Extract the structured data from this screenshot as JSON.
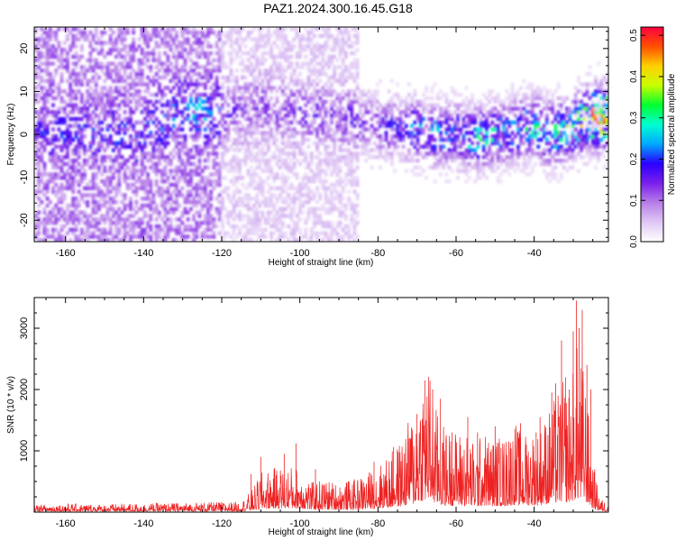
{
  "title": "PAZ1.2024.300.16.45.G18",
  "chart_data": [
    {
      "type": "heatmap",
      "title": "",
      "xlabel": "Height of straight line (km)",
      "ylabel": "Frequency (Hz)",
      "xlim": [
        -168,
        -21
      ],
      "ylim": [
        -25,
        25
      ],
      "xticks": [
        -160,
        -140,
        -120,
        -100,
        -80,
        -60,
        -40
      ],
      "yticks": [
        -20,
        -10,
        0,
        10,
        20
      ],
      "colorbar": {
        "label": "Normalized spectral amplitude",
        "range": [
          0,
          0.52
        ],
        "ticks": [
          0.0,
          0.1,
          0.2,
          0.3,
          0.4,
          0.5
        ],
        "colors": [
          "#ffffff",
          "#e0c8f4",
          "#b77ee8",
          "#7a1fea",
          "#2a00ff",
          "#00a8ff",
          "#00ffd0",
          "#00ff30",
          "#c8ff00",
          "#ffd000",
          "#ff5000",
          "#ff0040"
        ]
      },
      "ridge": [
        {
          "x": -160,
          "f": 0,
          "a": 0.06
        },
        {
          "x": -140,
          "f": 0,
          "a": 0.07
        },
        {
          "x": -130,
          "f": 6,
          "a": 0.1
        },
        {
          "x": -125,
          "f": 5,
          "a": 0.13
        },
        {
          "x": -120,
          "f": 5,
          "a": 0.09
        },
        {
          "x": -110,
          "f": 7,
          "a": 0.07
        },
        {
          "x": -100,
          "f": 5,
          "a": 0.08
        },
        {
          "x": -90,
          "f": 4,
          "a": 0.08
        },
        {
          "x": -80,
          "f": 2,
          "a": 0.12
        },
        {
          "x": -75,
          "f": 2,
          "a": 0.15
        },
        {
          "x": -70,
          "f": 1,
          "a": 0.18
        },
        {
          "x": -65,
          "f": 0,
          "a": 0.2
        },
        {
          "x": -60,
          "f": 0,
          "a": 0.2
        },
        {
          "x": -55,
          "f": -1,
          "a": 0.22
        },
        {
          "x": -50,
          "f": 0,
          "a": 0.22
        },
        {
          "x": -45,
          "f": 1,
          "a": 0.2
        },
        {
          "x": -40,
          "f": 2,
          "a": 0.24
        },
        {
          "x": -35,
          "f": 0,
          "a": 0.24
        },
        {
          "x": -30,
          "f": 2,
          "a": 0.26
        },
        {
          "x": -25,
          "f": 4,
          "a": 0.42
        }
      ]
    },
    {
      "type": "line",
      "title": "",
      "xlabel": "Height of straight line (km)",
      "ylabel": "SNR (10 * v/v)",
      "xlim": [
        -168,
        -21
      ],
      "ylim": [
        0,
        3500
      ],
      "xticks": [
        -160,
        -140,
        -120,
        -100,
        -80,
        -60,
        -40
      ],
      "yticks": [
        1000,
        2000,
        3000
      ],
      "color": "#ee2222",
      "series": [
        {
          "x": [
            -168,
            -160,
            -150,
            -140,
            -130,
            -120,
            -115,
            -112,
            -110,
            -106,
            -103,
            -100,
            -97,
            -94,
            -90,
            -86,
            -83,
            -80,
            -77,
            -74,
            -71,
            -69,
            -67,
            -65,
            -63,
            -61,
            -59,
            -57,
            -55,
            -53,
            -51,
            -49,
            -47,
            -45,
            -43,
            -41,
            -39,
            -37,
            -35,
            -33,
            -31,
            -29,
            -27,
            -25,
            -23,
            -21
          ],
          "values": [
            80,
            90,
            85,
            95,
            100,
            110,
            110,
            250,
            420,
            480,
            500,
            480,
            320,
            350,
            320,
            350,
            420,
            500,
            620,
            780,
            1100,
            1500,
            1600,
            1100,
            920,
            880,
            880,
            870,
            720,
            880,
            800,
            820,
            820,
            1000,
            820,
            920,
            880,
            1050,
            1200,
            1400,
            1350,
            1800,
            1500,
            500,
            150,
            100
          ]
        }
      ],
      "peaks": [
        {
          "x": -112.5,
          "y": 620
        },
        {
          "x": -110,
          "y": 900
        },
        {
          "x": -104,
          "y": 950
        },
        {
          "x": -101,
          "y": 1120
        },
        {
          "x": -96,
          "y": 700
        },
        {
          "x": -81,
          "y": 820
        },
        {
          "x": -76,
          "y": 1060
        },
        {
          "x": -72,
          "y": 1200
        },
        {
          "x": -70,
          "y": 1600
        },
        {
          "x": -68,
          "y": 2150
        },
        {
          "x": -66,
          "y": 2000
        },
        {
          "x": -64,
          "y": 1850
        },
        {
          "x": -62.5,
          "y": 1200
        },
        {
          "x": -61,
          "y": 1300
        },
        {
          "x": -59,
          "y": 1100
        },
        {
          "x": -57,
          "y": 1550
        },
        {
          "x": -54.5,
          "y": 1300
        },
        {
          "x": -50,
          "y": 1400
        },
        {
          "x": -48.5,
          "y": 1050
        },
        {
          "x": -46.5,
          "y": 1150
        },
        {
          "x": -43.5,
          "y": 1450
        },
        {
          "x": -42,
          "y": 1100
        },
        {
          "x": -39.5,
          "y": 1300
        },
        {
          "x": -38.5,
          "y": 1550
        },
        {
          "x": -37,
          "y": 1380
        },
        {
          "x": -35.5,
          "y": 1950
        },
        {
          "x": -34.5,
          "y": 2100
        },
        {
          "x": -33,
          "y": 2800
        },
        {
          "x": -32,
          "y": 2200
        },
        {
          "x": -31,
          "y": 2000
        },
        {
          "x": -30,
          "y": 2950
        },
        {
          "x": -29.2,
          "y": 3450
        },
        {
          "x": -28.5,
          "y": 3000
        },
        {
          "x": -27.7,
          "y": 3300
        },
        {
          "x": -26.5,
          "y": 2400
        },
        {
          "x": -25.5,
          "y": 2000
        },
        {
          "x": -24.5,
          "y": 700
        }
      ]
    }
  ]
}
